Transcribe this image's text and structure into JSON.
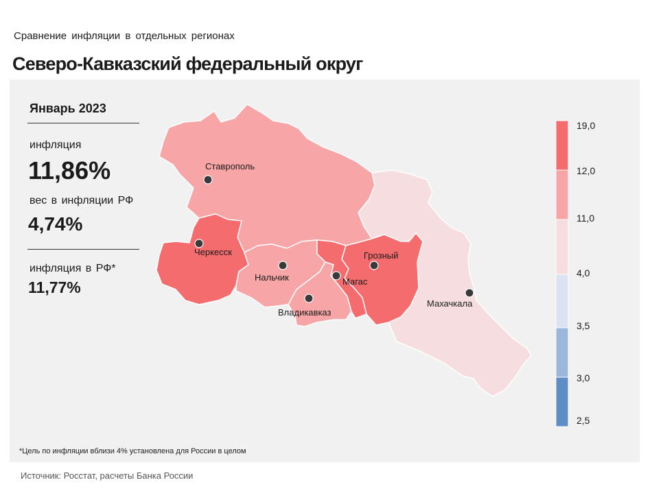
{
  "header": {
    "subtitle": "Сравнение инфляции в отдельных регионах",
    "title": "Северо-Кавказский федеральный округ"
  },
  "stats": {
    "period": "Январь 2023",
    "inflation_label": "инфляция",
    "inflation_value": "11,86%",
    "weight_label": "вес в инфляции РФ",
    "weight_value": "4,74%",
    "rf_label": "инфляция в РФ*",
    "rf_value": "11,77%"
  },
  "cities": [
    {
      "name": "Ставрополь"
    },
    {
      "name": "Черкесск"
    },
    {
      "name": "Нальчик"
    },
    {
      "name": "Магас"
    },
    {
      "name": "Грозный"
    },
    {
      "name": "Владикавказ"
    },
    {
      "name": "Махачкала"
    }
  ],
  "legend": {
    "ticks": [
      "19,0",
      "12,0",
      "11,0",
      "4,0",
      "3,5",
      "3,0",
      "2,5"
    ],
    "colors": [
      "#f56c6e",
      "#f7a5a7",
      "#f6dddf",
      "#dbe3f2",
      "#9db7db",
      "#5f8dc6"
    ]
  },
  "region_colors": {
    "high": "#f56c6e",
    "mid": "#f7a5a7",
    "low": "#f6dddf"
  },
  "footnote": "*Цель по инфляции вблизи 4% установлена для России в целом",
  "source": "Источник: Росстат, расчеты Банка России"
}
